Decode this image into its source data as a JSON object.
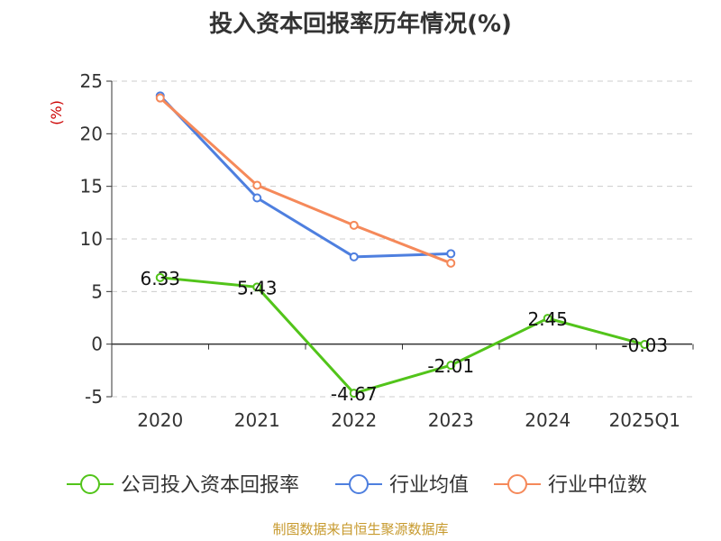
{
  "title": "投入资本回报率历年情况(%)",
  "source": "制图数据来自恒生聚源数据库",
  "colors": {
    "title": "#333333",
    "unit": "#cc0000",
    "axis": "#333333",
    "grid": "#cccccc",
    "source": "#c79a2e"
  },
  "chart_data": {
    "type": "line",
    "title": "投入资本回报率历年情况(%)",
    "ylabel": "(%)",
    "ylim": [
      -5,
      25
    ],
    "yticks": [
      -5,
      0,
      5,
      10,
      15,
      20,
      25
    ],
    "grid": true,
    "legend_position": "bottom",
    "categories": [
      "2020",
      "2021",
      "2022",
      "2023",
      "2024",
      "2025Q1"
    ],
    "series": [
      {
        "name": "公司投入资本回报率",
        "color": "#52c41a",
        "values": [
          6.33,
          5.43,
          -4.67,
          -2.01,
          2.45,
          -0.03
        ],
        "labels": [
          "6.33",
          "5.43",
          "-4.67",
          "-2.01",
          "2.45",
          "-0.03"
        ]
      },
      {
        "name": "行业均值",
        "color": "#4e7fdf",
        "values": [
          23.6,
          13.9,
          8.3,
          8.6,
          null,
          null
        ]
      },
      {
        "name": "行业中位数",
        "color": "#f5895a",
        "values": [
          23.4,
          15.1,
          11.3,
          7.7,
          null,
          null
        ]
      }
    ]
  }
}
